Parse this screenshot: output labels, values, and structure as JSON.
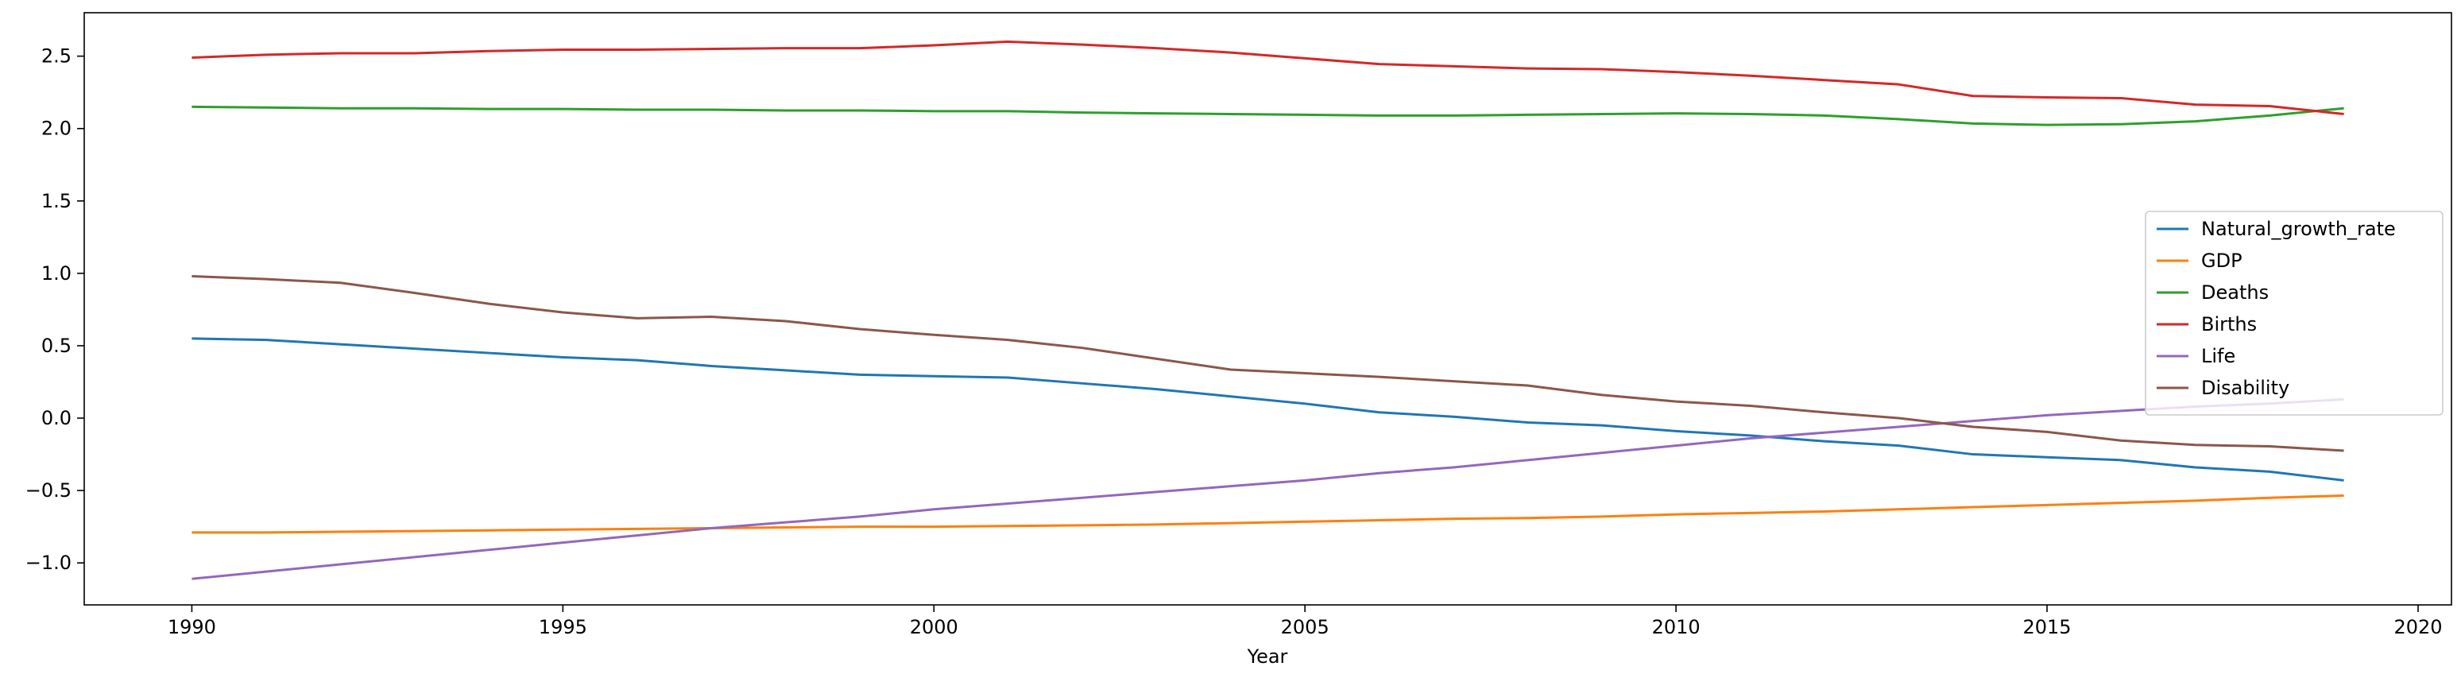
{
  "chart_data": {
    "type": "line",
    "title": "",
    "xlabel": "Year",
    "ylabel": "",
    "xlim": [
      1988.55,
      2020.45
    ],
    "ylim": [
      -1.29,
      2.8
    ],
    "x_ticks": [
      1990,
      1995,
      2000,
      2005,
      2010,
      2015,
      2020
    ],
    "x_tick_labels": [
      "1990",
      "1995",
      "2000",
      "2005",
      "2010",
      "2015",
      "2020"
    ],
    "y_ticks": [
      -1.0,
      -0.5,
      0.0,
      0.5,
      1.0,
      1.5,
      2.0,
      2.5
    ],
    "y_tick_labels": [
      "−1.0",
      "−0.5",
      "0.0",
      "0.5",
      "1.0",
      "1.5",
      "2.0",
      "2.5"
    ],
    "grid": false,
    "legend_position": "center-right",
    "x": [
      1990,
      1991,
      1992,
      1993,
      1994,
      1995,
      1996,
      1997,
      1998,
      1999,
      2000,
      2001,
      2002,
      2003,
      2004,
      2005,
      2006,
      2007,
      2008,
      2009,
      2010,
      2011,
      2012,
      2013,
      2014,
      2015,
      2016,
      2017,
      2018,
      2019
    ],
    "series": [
      {
        "name": "Natural_growth_rate",
        "color": "#1f77b4",
        "values": [
          0.55,
          0.54,
          0.51,
          0.48,
          0.45,
          0.42,
          0.4,
          0.36,
          0.33,
          0.3,
          0.29,
          0.28,
          0.24,
          0.2,
          0.15,
          0.1,
          0.04,
          0.01,
          -0.03,
          -0.05,
          -0.09,
          -0.12,
          -0.16,
          -0.19,
          -0.25,
          -0.27,
          -0.29,
          -0.34,
          -0.37,
          -0.43
        ]
      },
      {
        "name": "GDP",
        "color": "#ff7f0e",
        "values": [
          -0.79,
          -0.79,
          -0.785,
          -0.78,
          -0.775,
          -0.77,
          -0.765,
          -0.76,
          -0.755,
          -0.75,
          -0.75,
          -0.745,
          -0.74,
          -0.735,
          -0.725,
          -0.715,
          -0.705,
          -0.695,
          -0.69,
          -0.68,
          -0.665,
          -0.655,
          -0.645,
          -0.63,
          -0.615,
          -0.6,
          -0.585,
          -0.57,
          -0.55,
          -0.535
        ]
      },
      {
        "name": "Deaths",
        "color": "#2ca02c",
        "values": [
          2.15,
          2.145,
          2.14,
          2.14,
          2.135,
          2.135,
          2.13,
          2.13,
          2.125,
          2.125,
          2.12,
          2.12,
          2.11,
          2.105,
          2.1,
          2.095,
          2.09,
          2.09,
          2.095,
          2.1,
          2.105,
          2.1,
          2.09,
          2.065,
          2.035,
          2.025,
          2.03,
          2.05,
          2.09,
          2.14
        ]
      },
      {
        "name": "Births",
        "color": "#d62728",
        "values": [
          2.49,
          2.51,
          2.52,
          2.52,
          2.535,
          2.545,
          2.545,
          2.55,
          2.555,
          2.555,
          2.575,
          2.6,
          2.58,
          2.555,
          2.525,
          2.485,
          2.445,
          2.43,
          2.415,
          2.41,
          2.39,
          2.365,
          2.335,
          2.305,
          2.225,
          2.215,
          2.21,
          2.165,
          2.155,
          2.1
        ]
      },
      {
        "name": "Life",
        "color": "#9467bd",
        "values": [
          -1.11,
          -1.06,
          -1.01,
          -0.96,
          -0.91,
          -0.86,
          -0.81,
          -0.76,
          -0.72,
          -0.68,
          -0.63,
          -0.59,
          -0.55,
          -0.51,
          -0.47,
          -0.43,
          -0.38,
          -0.34,
          -0.29,
          -0.24,
          -0.19,
          -0.14,
          -0.1,
          -0.06,
          -0.02,
          0.02,
          0.05,
          0.08,
          0.1,
          0.13
        ]
      },
      {
        "name": "Disability",
        "color": "#8c564b",
        "values": [
          0.98,
          0.96,
          0.935,
          0.865,
          0.79,
          0.73,
          0.69,
          0.7,
          0.67,
          0.615,
          0.575,
          0.54,
          0.485,
          0.41,
          0.335,
          0.31,
          0.285,
          0.255,
          0.225,
          0.16,
          0.115,
          0.085,
          0.04,
          0.0,
          -0.06,
          -0.095,
          -0.155,
          -0.185,
          -0.195,
          -0.225
        ]
      }
    ]
  }
}
